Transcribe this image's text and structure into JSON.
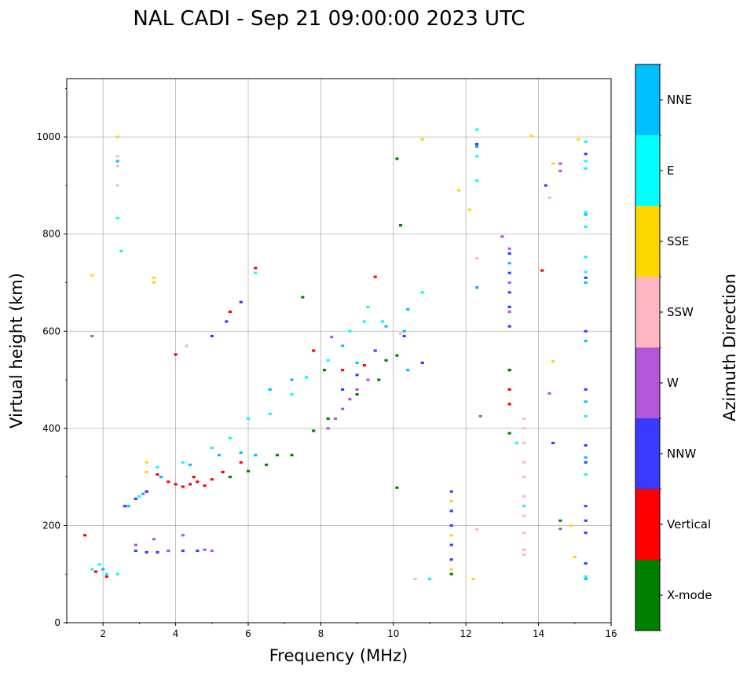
{
  "chart_data": {
    "type": "scatter",
    "title": "NAL CADI - Sep 21 09:00:00 2023 UTC",
    "xlabel": "Frequency (MHz)",
    "ylabel": "Virtual height (km)",
    "xlim": [
      1,
      16
    ],
    "ylim": [
      0,
      1120
    ],
    "xticks": [
      2,
      4,
      6,
      8,
      10,
      12,
      14,
      16
    ],
    "yticks": [
      0,
      200,
      400,
      600,
      800,
      1000
    ],
    "grid": true,
    "colorbar": {
      "title": "Azimuth Direction",
      "categories": [
        {
          "name": "X-mode",
          "color": "#008000"
        },
        {
          "name": "Vertical",
          "color": "#ff0000"
        },
        {
          "name": "NNW",
          "color": "#3a3aff"
        },
        {
          "name": "W",
          "color": "#b356d8"
        },
        {
          "name": "SSW",
          "color": "#ffb6c1"
        },
        {
          "name": "SSE",
          "color": "#ffd700"
        },
        {
          "name": "E",
          "color": "#00ffff"
        },
        {
          "name": "NNE",
          "color": "#00bfff"
        }
      ]
    },
    "series": [
      {
        "name": "Vertical",
        "points": [
          [
            1.5,
            180
          ],
          [
            1.8,
            105
          ],
          [
            2.1,
            95
          ],
          [
            3.5,
            305
          ],
          [
            3.8,
            290
          ],
          [
            4.0,
            285
          ],
          [
            4.2,
            280
          ],
          [
            4.4,
            285
          ],
          [
            4.6,
            290
          ],
          [
            4.8,
            282
          ],
          [
            5.0,
            295
          ],
          [
            5.3,
            310
          ],
          [
            4.0,
            552
          ],
          [
            6.2,
            730
          ],
          [
            5.5,
            640
          ],
          [
            7.8,
            560
          ],
          [
            8.6,
            520
          ],
          [
            9.2,
            530
          ],
          [
            9.5,
            712
          ],
          [
            13.2,
            480
          ],
          [
            13.2,
            450
          ],
          [
            13.2,
            520
          ],
          [
            14.1,
            725
          ],
          [
            4.5,
            300
          ],
          [
            3.2,
            270
          ],
          [
            5.8,
            330
          ]
        ]
      },
      {
        "name": "X-mode",
        "points": [
          [
            5.5,
            300
          ],
          [
            6.0,
            312
          ],
          [
            6.5,
            325
          ],
          [
            7.2,
            345
          ],
          [
            7.8,
            395
          ],
          [
            8.2,
            420
          ],
          [
            9.0,
            470
          ],
          [
            9.6,
            500
          ],
          [
            9.8,
            540
          ],
          [
            10.1,
            550
          ],
          [
            10.1,
            955
          ],
          [
            10.2,
            818
          ],
          [
            10.1,
            278
          ],
          [
            11.6,
            100
          ],
          [
            13.2,
            390
          ],
          [
            13.2,
            520
          ],
          [
            14.6,
            210
          ],
          [
            7.5,
            670
          ],
          [
            8.1,
            520
          ],
          [
            6.8,
            345
          ]
        ]
      },
      {
        "name": "NNW",
        "points": [
          [
            2.9,
            148
          ],
          [
            3.2,
            145
          ],
          [
            3.5,
            145
          ],
          [
            3.8,
            148
          ],
          [
            4.2,
            148
          ],
          [
            4.6,
            148
          ],
          [
            2.6,
            240
          ],
          [
            2.9,
            255
          ],
          [
            3.2,
            270
          ],
          [
            5.0,
            590
          ],
          [
            5.4,
            620
          ],
          [
            5.8,
            660
          ],
          [
            8.6,
            480
          ],
          [
            9.0,
            510
          ],
          [
            9.5,
            560
          ],
          [
            10.3,
            590
          ],
          [
            11.6,
            270
          ],
          [
            11.6,
            230
          ],
          [
            11.6,
            200
          ],
          [
            11.6,
            160
          ],
          [
            11.6,
            130
          ],
          [
            12.3,
            985
          ],
          [
            12.3,
            690
          ],
          [
            13.2,
            760
          ],
          [
            13.2,
            720
          ],
          [
            13.2,
            680
          ],
          [
            13.2,
            650
          ],
          [
            13.2,
            610
          ],
          [
            15.3,
            965
          ],
          [
            15.3,
            710
          ],
          [
            15.3,
            600
          ],
          [
            15.3,
            480
          ],
          [
            15.3,
            365
          ],
          [
            15.3,
            330
          ],
          [
            15.3,
            240
          ],
          [
            15.3,
            210
          ],
          [
            15.3,
            185
          ],
          [
            15.3,
            122
          ],
          [
            14.4,
            370
          ],
          [
            14.2,
            900
          ],
          [
            10.8,
            535
          ]
        ]
      },
      {
        "name": "W",
        "points": [
          [
            2.9,
            160
          ],
          [
            3.4,
            172
          ],
          [
            3.8,
            148
          ],
          [
            4.2,
            180
          ],
          [
            4.8,
            150
          ],
          [
            5.0,
            148
          ],
          [
            8.2,
            400
          ],
          [
            8.4,
            420
          ],
          [
            8.6,
            440
          ],
          [
            8.8,
            460
          ],
          [
            9.0,
            480
          ],
          [
            9.3,
            500
          ],
          [
            13.0,
            795
          ],
          [
            13.2,
            770
          ],
          [
            13.2,
            700
          ],
          [
            13.2,
            640
          ],
          [
            14.6,
            945
          ],
          [
            14.6,
            930
          ],
          [
            12.4,
            425
          ],
          [
            14.3,
            472
          ],
          [
            14.6,
            193
          ],
          [
            1.7,
            590
          ],
          [
            8.3,
            588
          ]
        ]
      },
      {
        "name": "SSW",
        "points": [
          [
            2.4,
            960
          ],
          [
            2.4,
            940
          ],
          [
            2.4,
            900
          ],
          [
            13.6,
            420
          ],
          [
            13.6,
            400
          ],
          [
            13.6,
            370
          ],
          [
            13.6,
            330
          ],
          [
            13.6,
            300
          ],
          [
            13.6,
            260
          ],
          [
            13.6,
            220
          ],
          [
            13.6,
            185
          ],
          [
            13.6,
            150
          ],
          [
            13.6,
            140
          ],
          [
            12.3,
            750
          ],
          [
            12.3,
            192
          ],
          [
            14.3,
            875
          ],
          [
            10.6,
            90
          ],
          [
            4.3,
            570
          ],
          [
            10.2,
            595
          ]
        ]
      },
      {
        "name": "SSE",
        "points": [
          [
            2.4,
            1000
          ],
          [
            3.4,
            700
          ],
          [
            3.4,
            710
          ],
          [
            1.7,
            715
          ],
          [
            11.6,
            250
          ],
          [
            11.6,
            180
          ],
          [
            11.6,
            110
          ],
          [
            12.1,
            850
          ],
          [
            12.2,
            90
          ],
          [
            11.8,
            890
          ],
          [
            13.8,
            1002
          ],
          [
            14.4,
            945
          ],
          [
            14.4,
            538
          ],
          [
            15.1,
            995
          ],
          [
            14.9,
            200
          ],
          [
            15.0,
            135
          ],
          [
            10.8,
            995
          ],
          [
            3.2,
            330
          ],
          [
            3.2,
            310
          ]
        ]
      },
      {
        "name": "E",
        "points": [
          [
            1.7,
            110
          ],
          [
            1.9,
            120
          ],
          [
            2.1,
            100
          ],
          [
            2.4,
            100
          ],
          [
            2.4,
            833
          ],
          [
            2.5,
            765
          ],
          [
            3.0,
            260
          ],
          [
            3.5,
            320
          ],
          [
            4.2,
            330
          ],
          [
            5.0,
            360
          ],
          [
            5.5,
            380
          ],
          [
            6.0,
            420
          ],
          [
            6.2,
            720
          ],
          [
            6.6,
            430
          ],
          [
            7.2,
            470
          ],
          [
            7.6,
            505
          ],
          [
            8.2,
            540
          ],
          [
            8.8,
            600
          ],
          [
            9.2,
            620
          ],
          [
            9.7,
            620
          ],
          [
            10.8,
            680
          ],
          [
            12.3,
            1015
          ],
          [
            12.3,
            960
          ],
          [
            12.3,
            910
          ],
          [
            13.4,
            370
          ],
          [
            13.6,
            240
          ],
          [
            15.3,
            990
          ],
          [
            15.3,
            950
          ],
          [
            15.3,
            935
          ],
          [
            15.3,
            845
          ],
          [
            15.3,
            815
          ],
          [
            15.3,
            753
          ],
          [
            15.3,
            722
          ],
          [
            15.3,
            425
          ],
          [
            15.3,
            305
          ],
          [
            15.3,
            95
          ],
          [
            11.0,
            90
          ],
          [
            9.3,
            650
          ]
        ]
      },
      {
        "name": "NNE",
        "points": [
          [
            2.4,
            950
          ],
          [
            2.0,
            110
          ],
          [
            2.7,
            240
          ],
          [
            3.1,
            265
          ],
          [
            3.6,
            300
          ],
          [
            4.4,
            325
          ],
          [
            5.2,
            345
          ],
          [
            5.8,
            350
          ],
          [
            6.2,
            345
          ],
          [
            6.6,
            480
          ],
          [
            7.2,
            500
          ],
          [
            8.6,
            570
          ],
          [
            9.0,
            535
          ],
          [
            10.3,
            600
          ],
          [
            10.4,
            645
          ],
          [
            12.3,
            980
          ],
          [
            12.3,
            690
          ],
          [
            13.2,
            740
          ],
          [
            15.3,
            840
          ],
          [
            15.3,
            700
          ],
          [
            15.3,
            580
          ],
          [
            15.3,
            455
          ],
          [
            15.3,
            340
          ],
          [
            15.3,
            90
          ],
          [
            9.8,
            610
          ],
          [
            10.4,
            520
          ]
        ]
      }
    ]
  }
}
